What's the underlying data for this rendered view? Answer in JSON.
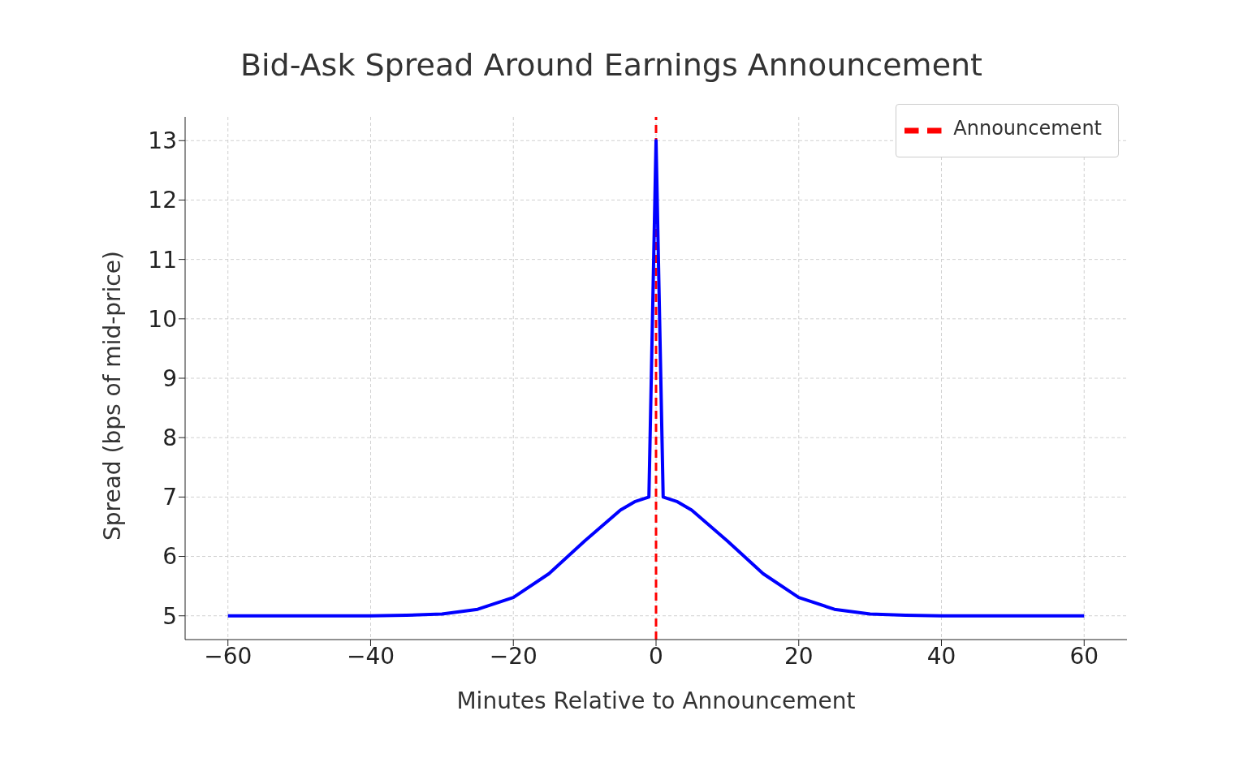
{
  "chart_data": {
    "type": "line",
    "title": "Bid-Ask Spread Around Earnings Announcement",
    "xlabel": "Minutes Relative to Announcement",
    "ylabel": "Spread (bps of mid-price)",
    "x": [
      -60,
      -50,
      -40,
      -35,
      -30,
      -25,
      -20,
      -15,
      -10,
      -5,
      -3,
      -1,
      0,
      1,
      3,
      5,
      10,
      15,
      20,
      25,
      30,
      35,
      40,
      50,
      60
    ],
    "series": [
      {
        "color": "#0000ff",
        "values": [
          5.0,
          5.0,
          5.0,
          5.01,
          5.03,
          5.11,
          5.31,
          5.71,
          6.26,
          6.78,
          6.92,
          7.0,
          13.0,
          7.0,
          6.92,
          6.78,
          6.26,
          5.71,
          5.31,
          5.11,
          5.03,
          5.01,
          5.0,
          5.0,
          5.0
        ]
      },
      {
        "type": "line",
        "name": "Announcement",
        "color": "#ff0000",
        "line_style": "dashed",
        "x": [
          0,
          0
        ],
        "values": [
          4.6,
          13.4
        ]
      }
    ],
    "xlim": [
      -66,
      66
    ],
    "xticks": [
      {
        "value": -60,
        "label": "−60"
      },
      {
        "value": -40,
        "label": "−40"
      },
      {
        "value": -20,
        "label": "−20"
      },
      0,
      20,
      40,
      60
    ],
    "ylim": [
      4.6,
      13.4
    ],
    "yticks": [
      5,
      6,
      7,
      8,
      9,
      10,
      11,
      12,
      13
    ],
    "grid": true,
    "legend": "top right",
    "marker": "none",
    "line_style": "solid"
  }
}
